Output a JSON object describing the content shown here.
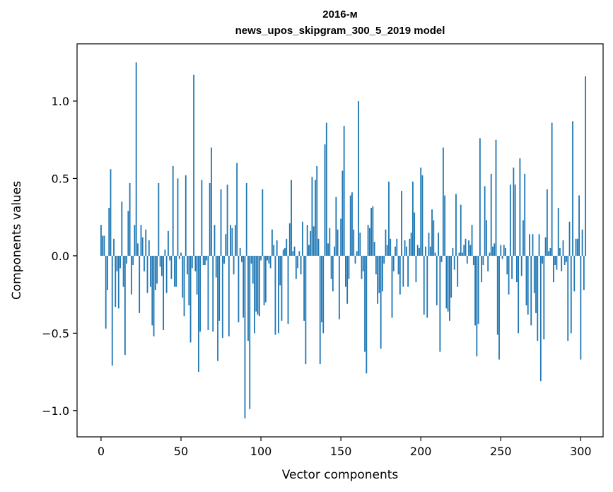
{
  "chart_data": {
    "type": "bar",
    "title_line1": "2016-м",
    "title_line2": "news_upos_skipgram_300_5_2019 model",
    "xlabel": "Vector components",
    "ylabel": "Components values",
    "xlim": [
      -15,
      314
    ],
    "ylim": [
      -1.17,
      1.37
    ],
    "xticks": [
      0,
      50,
      100,
      150,
      200,
      250,
      300
    ],
    "xtick_labels": [
      "0",
      "50",
      "100",
      "150",
      "200",
      "250",
      "300"
    ],
    "yticks": [
      -1.0,
      -0.5,
      0.0,
      0.5,
      1.0
    ],
    "ytick_labels": [
      "−1.0",
      "−0.5",
      "0.0",
      "0.5",
      "1.0"
    ],
    "bar_color": "#1f77b4",
    "bar_width": 0.8,
    "grid": false,
    "values": [
      0.2,
      0.13,
      0.13,
      -0.47,
      -0.22,
      0.31,
      0.56,
      -0.71,
      0.11,
      -0.33,
      -0.1,
      -0.34,
      -0.08,
      0.35,
      -0.2,
      -0.64,
      -0.05,
      0.29,
      0.47,
      -0.25,
      -0.06,
      0.2,
      1.25,
      0.08,
      -0.37,
      0.2,
      0.12,
      -0.1,
      0.17,
      -0.24,
      0.1,
      -0.2,
      -0.45,
      -0.52,
      -0.22,
      -0.18,
      0.47,
      -0.07,
      -0.13,
      -0.48,
      0.04,
      -0.24,
      0.16,
      -0.03,
      -0.15,
      0.58,
      -0.2,
      -0.2,
      0.5,
      -0.02,
      0.02,
      -0.27,
      -0.39,
      0.52,
      -0.12,
      -0.32,
      -0.56,
      -0.08,
      1.17,
      -0.1,
      -0.25,
      -0.75,
      -0.49,
      0.49,
      -0.06,
      -0.06,
      -0.03,
      -0.48,
      0.47,
      0.7,
      -0.49,
      0.2,
      -0.14,
      -0.68,
      -0.42,
      0.43,
      -0.53,
      -0.05,
      0.14,
      0.46,
      -0.52,
      0.2,
      0.18,
      -0.12,
      0.2,
      0.6,
      -0.43,
      0.05,
      -0.04,
      -0.4,
      -1.05,
      0.47,
      -0.55,
      -0.99,
      -0.05,
      -0.18,
      -0.5,
      -0.36,
      -0.38,
      -0.39,
      -0.03,
      0.43,
      -0.32,
      -0.3,
      -0.03,
      -0.05,
      -0.08,
      0.17,
      0.07,
      -0.51,
      0.1,
      -0.5,
      -0.19,
      -0.42,
      0.04,
      0.05,
      0.11,
      -0.44,
      0.21,
      0.49,
      0.03,
      0.06,
      -0.15,
      -0.08,
      0.03,
      -0.12,
      0.22,
      -0.42,
      -0.7,
      0.2,
      0.07,
      0.16,
      0.51,
      0.19,
      0.49,
      0.58,
      0.11,
      -0.7,
      -0.43,
      -0.5,
      0.72,
      0.86,
      0.08,
      0.18,
      -0.15,
      -0.23,
      0.06,
      0.38,
      0.17,
      -0.41,
      0.24,
      0.55,
      0.84,
      -0.2,
      -0.31,
      -0.15,
      0.39,
      0.41,
      0.17,
      -0.05,
      0.03,
      1.0,
      0.15,
      -0.15,
      -0.1,
      -0.62,
      -0.76,
      0.2,
      0.18,
      0.31,
      0.32,
      0.09,
      -0.12,
      -0.31,
      -0.24,
      -0.6,
      -0.23,
      -0.05,
      0.17,
      0.07,
      0.48,
      0.11,
      -0.4,
      -0.1,
      0.06,
      0.11,
      -0.12,
      -0.25,
      0.42,
      -0.2,
      0.1,
      0.06,
      -0.2,
      0.11,
      0.15,
      0.48,
      0.28,
      -0.17,
      0.07,
      0.05,
      0.57,
      0.52,
      -0.38,
      0.06,
      -0.4,
      0.15,
      0.06,
      0.3,
      0.23,
      0.02,
      -0.32,
      0.15,
      -0.62,
      -0.04,
      0.7,
      0.39,
      -0.34,
      -0.36,
      -0.42,
      -0.27,
      0.05,
      -0.09,
      0.4,
      -0.2,
      0.02,
      0.33,
      0.02,
      0.07,
      0.11,
      -0.05,
      0.1,
      0.07,
      0.2,
      -0.06,
      -0.45,
      -0.65,
      -0.44,
      0.76,
      -0.17,
      -0.06,
      0.45,
      0.23,
      -0.1,
      0.02,
      0.53,
      0.06,
      0.08,
      0.75,
      -0.51,
      -0.67,
      0.07,
      -0.02,
      0.07,
      0.05,
      -0.12,
      -0.25,
      0.46,
      -0.15,
      0.57,
      0.46,
      -0.17,
      -0.5,
      0.63,
      -0.13,
      0.23,
      0.53,
      -0.32,
      -0.38,
      0.14,
      -0.45,
      0.14,
      -0.24,
      -0.37,
      -0.55,
      0.14,
      -0.81,
      -0.05,
      -0.54,
      0.12,
      0.43,
      0.03,
      0.05,
      0.86,
      -0.17,
      -0.06,
      -0.09,
      0.31,
      0.05,
      -0.1,
      0.1,
      -0.06,
      -0.04,
      -0.55,
      0.22,
      -0.5,
      0.87,
      -0.23,
      0.11,
      0.11,
      0.39
    ],
    "extra_values": [
      -0.67,
      0.17,
      -0.22,
      1.16
    ]
  }
}
